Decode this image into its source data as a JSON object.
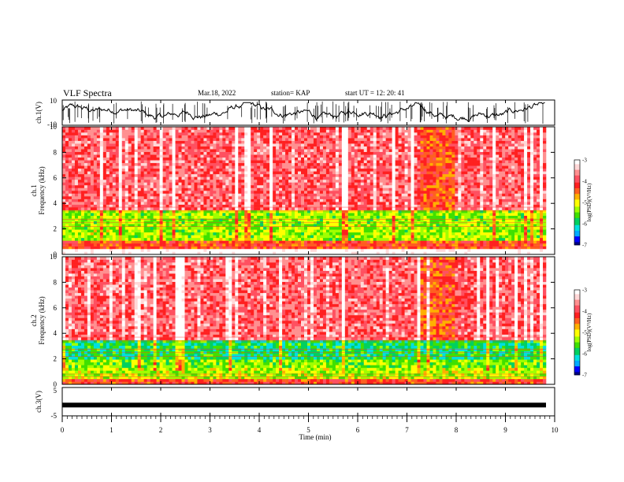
{
  "header": {
    "title": "VLF Spectra",
    "date": "Mar.18, 2022",
    "station": "station= KAP",
    "start": "start  UT =   12: 20: 41"
  },
  "colors": {
    "palette": [
      "#000080",
      "#0000ff",
      "#00aaff",
      "#00e0e0",
      "#00d060",
      "#40e000",
      "#a0ff00",
      "#ffff00",
      "#ffb000",
      "#ff6020",
      "#ff2020",
      "#ff5060",
      "#ff9090",
      "#ffd8d8",
      "#ffffff"
    ],
    "axis": "#000000"
  },
  "chart_data": [
    {
      "type": "line",
      "ylabel": "ch.1(V)",
      "ylim": [
        -10,
        10
      ],
      "yticks": [
        "10",
        "-10"
      ],
      "xlim": [
        0,
        10
      ],
      "note": "broadband waveform oscillating roughly between -7 and 7 V"
    },
    {
      "type": "heatmap",
      "ylabel": "ch.1\nFrequency  (kHz)",
      "ylim": [
        0,
        10
      ],
      "yticks": [
        "0",
        "2",
        "4",
        "6",
        "8",
        "10"
      ],
      "xlim": [
        0,
        9.8
      ],
      "colorbar": {
        "label": "log(PSD)(V²/Hz)",
        "range": [
          -7,
          -3
        ],
        "ticks": [
          "-3",
          "-4",
          "-5",
          "-6",
          "-7"
        ]
      },
      "bands": [
        {
          "from": 0,
          "to": 0.4,
          "level": -2.8
        },
        {
          "from": 0.4,
          "to": 1.0,
          "level": -4.3
        },
        {
          "from": 1.0,
          "to": 3.3,
          "level": -5.3
        },
        {
          "from": 3.3,
          "to": 10,
          "level": -3.8
        }
      ],
      "quiet_interval": [
        7.25,
        7.9
      ]
    },
    {
      "type": "heatmap",
      "ylabel": "ch.2\nFrequency  (kHz)",
      "ylim": [
        0,
        10
      ],
      "yticks": [
        "0",
        "2",
        "4",
        "6",
        "8",
        "10"
      ],
      "xlim": [
        0,
        9.8
      ],
      "colorbar": {
        "label": "log(PSD)(V²/Hz)",
        "range": [
          -7,
          -3
        ],
        "ticks": [
          "-3",
          "-4",
          "-5",
          "-6",
          "-7"
        ]
      },
      "bands": [
        {
          "from": 0,
          "to": 0.3,
          "level": -4.2
        },
        {
          "from": 0.3,
          "to": 1.2,
          "level": -5.2
        },
        {
          "from": 1.2,
          "to": 1.9,
          "level": -5.4
        },
        {
          "from": 1.9,
          "to": 3.3,
          "level": -5.8
        },
        {
          "from": 3.3,
          "to": 10,
          "level": -3.8
        }
      ],
      "quiet_interval": [
        7.25,
        7.9
      ]
    },
    {
      "type": "line",
      "ylabel": "ch.3(V)",
      "ylim": [
        -5,
        5
      ],
      "yticks": [
        "5",
        "-5"
      ],
      "xlim": [
        0,
        10
      ],
      "level": -1.2
    }
  ],
  "xaxis": {
    "label": "Time  (min)",
    "ticks": [
      "0",
      "1",
      "2",
      "3",
      "4",
      "5",
      "6",
      "7",
      "8",
      "9",
      "10"
    ],
    "range": [
      0,
      10
    ]
  }
}
